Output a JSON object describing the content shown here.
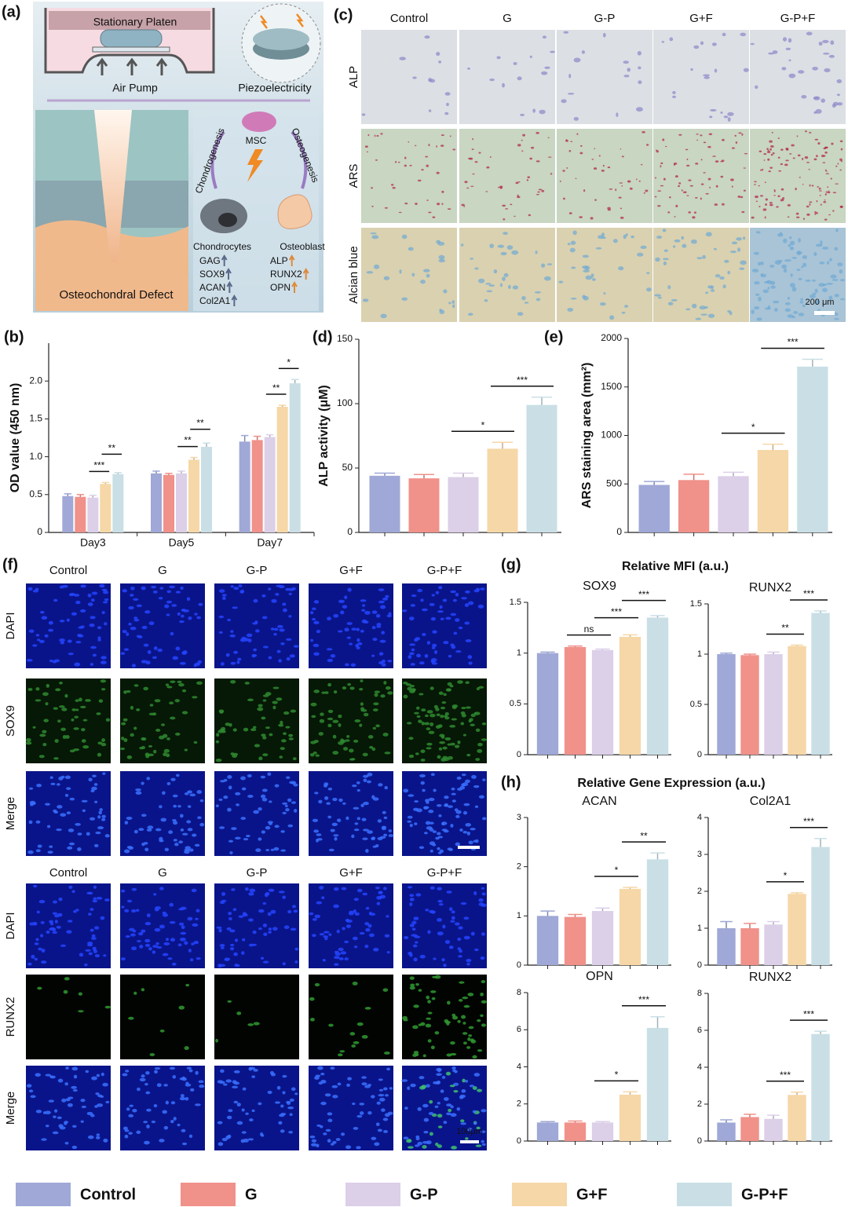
{
  "panel_labels": [
    "(a)",
    "(b)",
    "(c)",
    "(d)",
    "(e)",
    "(f)",
    "(g)",
    "(h)"
  ],
  "schematic": {
    "platen": "Stationary Platen",
    "pump": "Air Pump",
    "piezo": "Piezoelectricity",
    "msc": "MSC",
    "chondro_path": "Chondrogenesis",
    "osteo_path": "Osteogenesis",
    "chondrocytes": "Chondrocytes",
    "osteoblast": "Osteoblast",
    "chondro_markers": [
      "GAG",
      "SOX9",
      "ACAN",
      "Col2A1"
    ],
    "osteo_markers": [
      "ALP",
      "RUNX2",
      "OPN"
    ],
    "defect": "Osteochondral Defect"
  },
  "stain_grid": {
    "columns": [
      "Control",
      "G",
      "G-P",
      "G+F",
      "G-P+F"
    ],
    "rows": [
      "ALP",
      "ARS",
      "Alcian blue"
    ],
    "scale_bar": "200 μm"
  },
  "fluor_grid": [
    {
      "columns": [
        "Control",
        "G",
        "G-P",
        "G+F",
        "G-P+F"
      ],
      "rows": [
        "DAPI",
        "SOX9",
        "Merge"
      ]
    },
    {
      "columns": [
        "Control",
        "G",
        "G-P",
        "G+F",
        "G-P+F"
      ],
      "rows": [
        "DAPI",
        "RUNX2",
        "Merge"
      ],
      "scale_bar": "100μm"
    }
  ],
  "headings": {
    "mfi": "Relative MFI (a.u.)",
    "gene": "Relative Gene Expression (a.u.)"
  },
  "chart_data": [
    {
      "type": "grouped_bar",
      "ylabel": "OD value (450 nm)",
      "categories": [
        "Day3",
        "Day5",
        "Day7"
      ],
      "series": [
        {
          "name": "Control",
          "color": "#9fa8d6",
          "values": [
            0.48,
            0.78,
            1.2
          ],
          "errors": [
            0.03,
            0.03,
            0.08
          ]
        },
        {
          "name": "G",
          "color": "#f0918a",
          "values": [
            0.47,
            0.76,
            1.22
          ],
          "errors": [
            0.03,
            0.02,
            0.05
          ]
        },
        {
          "name": "G-P",
          "color": "#dccfe8",
          "values": [
            0.46,
            0.78,
            1.26
          ],
          "errors": [
            0.03,
            0.03,
            0.03
          ]
        },
        {
          "name": "G+F",
          "color": "#f6d7a7",
          "values": [
            0.64,
            0.96,
            1.66
          ],
          "errors": [
            0.02,
            0.03,
            0.02
          ]
        },
        {
          "name": "G-P+F",
          "color": "#c9dfe5",
          "values": [
            0.77,
            1.13,
            1.97
          ],
          "errors": [
            0.02,
            0.05,
            0.05
          ]
        }
      ],
      "ylim": [
        0,
        2.5
      ],
      "yticks": [
        0,
        0.5,
        {
          "value": 1,
          "label": "1.0"
        },
        1.5,
        {
          "value": 2,
          "label": "2.0"
        }
      ],
      "significance": [
        {
          "label": "***",
          "group": 0,
          "bars": [
            2,
            3
          ]
        },
        {
          "label": "**",
          "group": 0,
          "bars": [
            3,
            4
          ]
        },
        {
          "label": "**",
          "group": 1,
          "bars": [
            2,
            3
          ]
        },
        {
          "label": "**",
          "group": 1,
          "bars": [
            3,
            4
          ]
        },
        {
          "label": "**",
          "group": 2,
          "bars": [
            2,
            3
          ]
        },
        {
          "label": "*",
          "group": 2,
          "bars": [
            3,
            4
          ]
        }
      ]
    },
    {
      "type": "bar",
      "ylabel": "ALP activity (μM)",
      "values": [
        44,
        42,
        43,
        65,
        99
      ],
      "errors": [
        2,
        3,
        3,
        5,
        6
      ],
      "colors": [
        "#9fa8d6",
        "#f0918a",
        "#dccfe8",
        "#f6d7a7",
        "#c9dfe5"
      ],
      "ylim": [
        0,
        150
      ],
      "yticks": [
        0,
        50,
        100,
        150
      ],
      "significance": [
        {
          "label": "*",
          "bars": [
            2,
            3
          ]
        },
        {
          "label": "***",
          "bars": [
            3,
            4
          ]
        }
      ]
    },
    {
      "type": "bar",
      "ylabel": "ARS staining area (mm²)",
      "values": [
        490,
        540,
        580,
        850,
        1710
      ],
      "errors": [
        35,
        60,
        40,
        60,
        75
      ],
      "colors": [
        "#9fa8d6",
        "#f0918a",
        "#dccfe8",
        "#f6d7a7",
        "#c9dfe5"
      ],
      "ylim": [
        0,
        2000
      ],
      "yticks": [
        0,
        500,
        1000,
        1500,
        2000
      ],
      "significance": [
        {
          "label": "*",
          "bars": [
            2,
            3
          ]
        },
        {
          "label": "***",
          "bars": [
            3,
            4
          ]
        }
      ]
    },
    {
      "type": "bar",
      "title": "SOX9",
      "values": [
        1.0,
        1.06,
        1.03,
        1.16,
        1.35
      ],
      "errors": [
        0.01,
        0.01,
        0.01,
        0.02,
        0.02
      ],
      "colors": [
        "#9fa8d6",
        "#f0918a",
        "#dccfe8",
        "#f6d7a7",
        "#c9dfe5"
      ],
      "ylim": [
        0,
        1.5
      ],
      "yticks": [
        0,
        0.5,
        1,
        1.5
      ],
      "significance": [
        {
          "label": "ns",
          "bars": [
            1,
            2
          ]
        },
        {
          "label": "***",
          "bars": [
            2,
            3
          ]
        },
        {
          "label": "***",
          "bars": [
            3,
            4
          ]
        }
      ]
    },
    {
      "type": "bar",
      "title": "RUNX2",
      "values": [
        1.0,
        0.99,
        1.0,
        1.08,
        1.41
      ],
      "errors": [
        0.01,
        0.01,
        0.02,
        0.01,
        0.02
      ],
      "colors": [
        "#9fa8d6",
        "#f0918a",
        "#dccfe8",
        "#f6d7a7",
        "#c9dfe5"
      ],
      "ylim": [
        0,
        1.5
      ],
      "yticks": [
        0,
        0.5,
        1,
        1.5
      ],
      "significance": [
        {
          "label": "**",
          "bars": [
            2,
            3
          ]
        },
        {
          "label": "***",
          "bars": [
            3,
            4
          ]
        }
      ]
    },
    {
      "type": "bar",
      "title": "ACAN",
      "values": [
        1.0,
        0.98,
        1.1,
        1.55,
        2.15
      ],
      "errors": [
        0.1,
        0.05,
        0.06,
        0.03,
        0.13
      ],
      "colors": [
        "#9fa8d6",
        "#f0918a",
        "#dccfe8",
        "#f6d7a7",
        "#c9dfe5"
      ],
      "ylim": [
        0,
        3
      ],
      "yticks": [
        0,
        1,
        2,
        3
      ],
      "significance": [
        {
          "label": "*",
          "bars": [
            2,
            3
          ]
        },
        {
          "label": "**",
          "bars": [
            3,
            4
          ]
        }
      ]
    },
    {
      "type": "bar",
      "title": "Col2A1",
      "values": [
        1.0,
        1.0,
        1.1,
        1.93,
        3.2
      ],
      "errors": [
        0.18,
        0.13,
        0.08,
        0.03,
        0.23
      ],
      "colors": [
        "#9fa8d6",
        "#f0918a",
        "#dccfe8",
        "#f6d7a7",
        "#c9dfe5"
      ],
      "ylim": [
        0,
        4
      ],
      "yticks": [
        0,
        1,
        2,
        3,
        4
      ],
      "significance": [
        {
          "label": "*",
          "bars": [
            2,
            3
          ]
        },
        {
          "label": "***",
          "bars": [
            3,
            4
          ]
        }
      ]
    },
    {
      "type": "bar",
      "title": "OPN",
      "values": [
        1.0,
        1.0,
        1.0,
        2.5,
        6.1
      ],
      "errors": [
        0.05,
        0.08,
        0.05,
        0.15,
        0.6
      ],
      "colors": [
        "#9fa8d6",
        "#f0918a",
        "#dccfe8",
        "#f6d7a7",
        "#c9dfe5"
      ],
      "ylim": [
        0,
        8
      ],
      "yticks": [
        0,
        2,
        4,
        6,
        8
      ],
      "significance": [
        {
          "label": "*",
          "bars": [
            2,
            3
          ]
        },
        {
          "label": "***",
          "bars": [
            3,
            4
          ]
        }
      ]
    },
    {
      "type": "bar",
      "title": "RUNX2",
      "values": [
        1.0,
        1.3,
        1.2,
        2.5,
        5.8
      ],
      "errors": [
        0.15,
        0.15,
        0.2,
        0.15,
        0.15
      ],
      "colors": [
        "#9fa8d6",
        "#f0918a",
        "#dccfe8",
        "#f6d7a7",
        "#c9dfe5"
      ],
      "ylim": [
        0,
        8
      ],
      "yticks": [
        0,
        2,
        4,
        6,
        8
      ],
      "significance": [
        {
          "label": "***",
          "bars": [
            2,
            3
          ]
        },
        {
          "label": "***",
          "bars": [
            3,
            4
          ]
        }
      ]
    }
  ]
}
